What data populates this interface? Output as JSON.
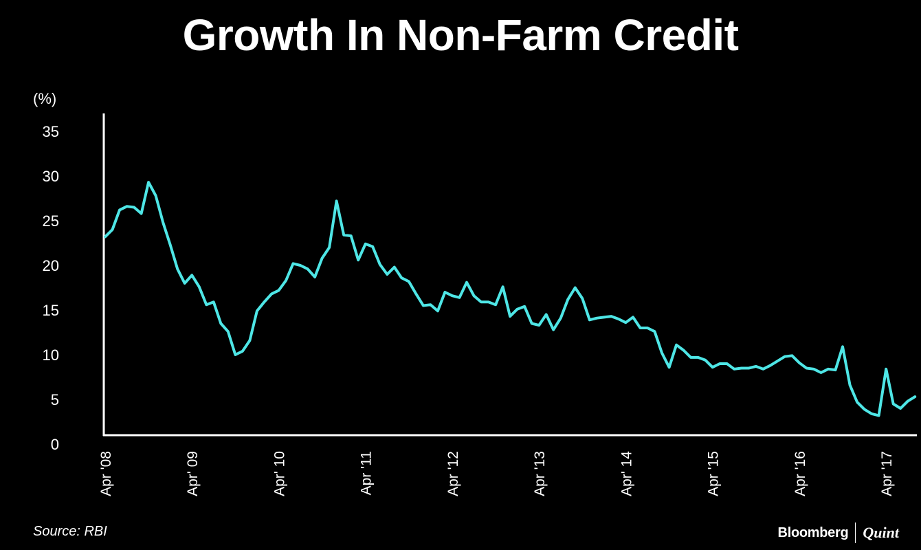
{
  "brand": {
    "name": "Bloomberg",
    "partner": "Quint"
  },
  "chart_data": {
    "type": "line",
    "title": "Growth In Non-Farm Credit",
    "ylabel": "(%)",
    "source": "Source: RBI",
    "ylim": [
      0,
      36
    ],
    "yticks": [
      0,
      5,
      10,
      15,
      20,
      25,
      30,
      35
    ],
    "xticks": [
      "Apr '08",
      "Apr' 09",
      "Apr' 10",
      "Apr '11",
      "Apr '12",
      "Apr '13",
      "Apr' 14",
      "Apr '15",
      "Apr '16",
      "Apr '17"
    ],
    "start": "Apr 2008",
    "frequency": "monthly",
    "line_color": "#4ee6e6",
    "grid": false,
    "series": [
      {
        "name": "",
        "values": [
          23.2,
          24.0,
          26.2,
          26.6,
          26.5,
          25.8,
          29.3,
          27.8,
          24.8,
          22.3,
          19.6,
          18.0,
          18.9,
          17.6,
          15.6,
          15.9,
          13.5,
          12.6,
          10.0,
          10.4,
          11.6,
          14.9,
          15.9,
          16.8,
          17.2,
          18.3,
          20.2,
          20.0,
          19.6,
          18.7,
          20.8,
          22.0,
          27.2,
          23.4,
          23.3,
          20.6,
          22.4,
          22.1,
          20.1,
          19.0,
          19.8,
          18.6,
          18.2,
          16.8,
          15.5,
          15.6,
          14.9,
          17.0,
          16.6,
          16.4,
          18.1,
          16.6,
          15.9,
          15.9,
          15.6,
          17.6,
          14.3,
          15.1,
          15.4,
          13.5,
          13.3,
          14.5,
          12.8,
          14.1,
          16.2,
          17.5,
          16.3,
          13.9,
          14.1,
          14.2,
          14.3,
          14.0,
          13.6,
          14.2,
          13.0,
          13.0,
          12.6,
          10.2,
          8.6,
          11.1,
          10.5,
          9.7,
          9.7,
          9.4,
          8.6,
          9.0,
          9.0,
          8.4,
          8.5,
          8.5,
          8.7,
          8.4,
          8.8,
          9.3,
          9.8,
          9.9,
          9.1,
          8.5,
          8.4,
          8.0,
          8.4,
          8.3,
          10.9,
          6.6,
          4.7,
          3.9,
          3.4,
          3.2,
          8.4,
          4.5,
          4.0,
          4.8,
          5.3
        ]
      }
    ]
  }
}
